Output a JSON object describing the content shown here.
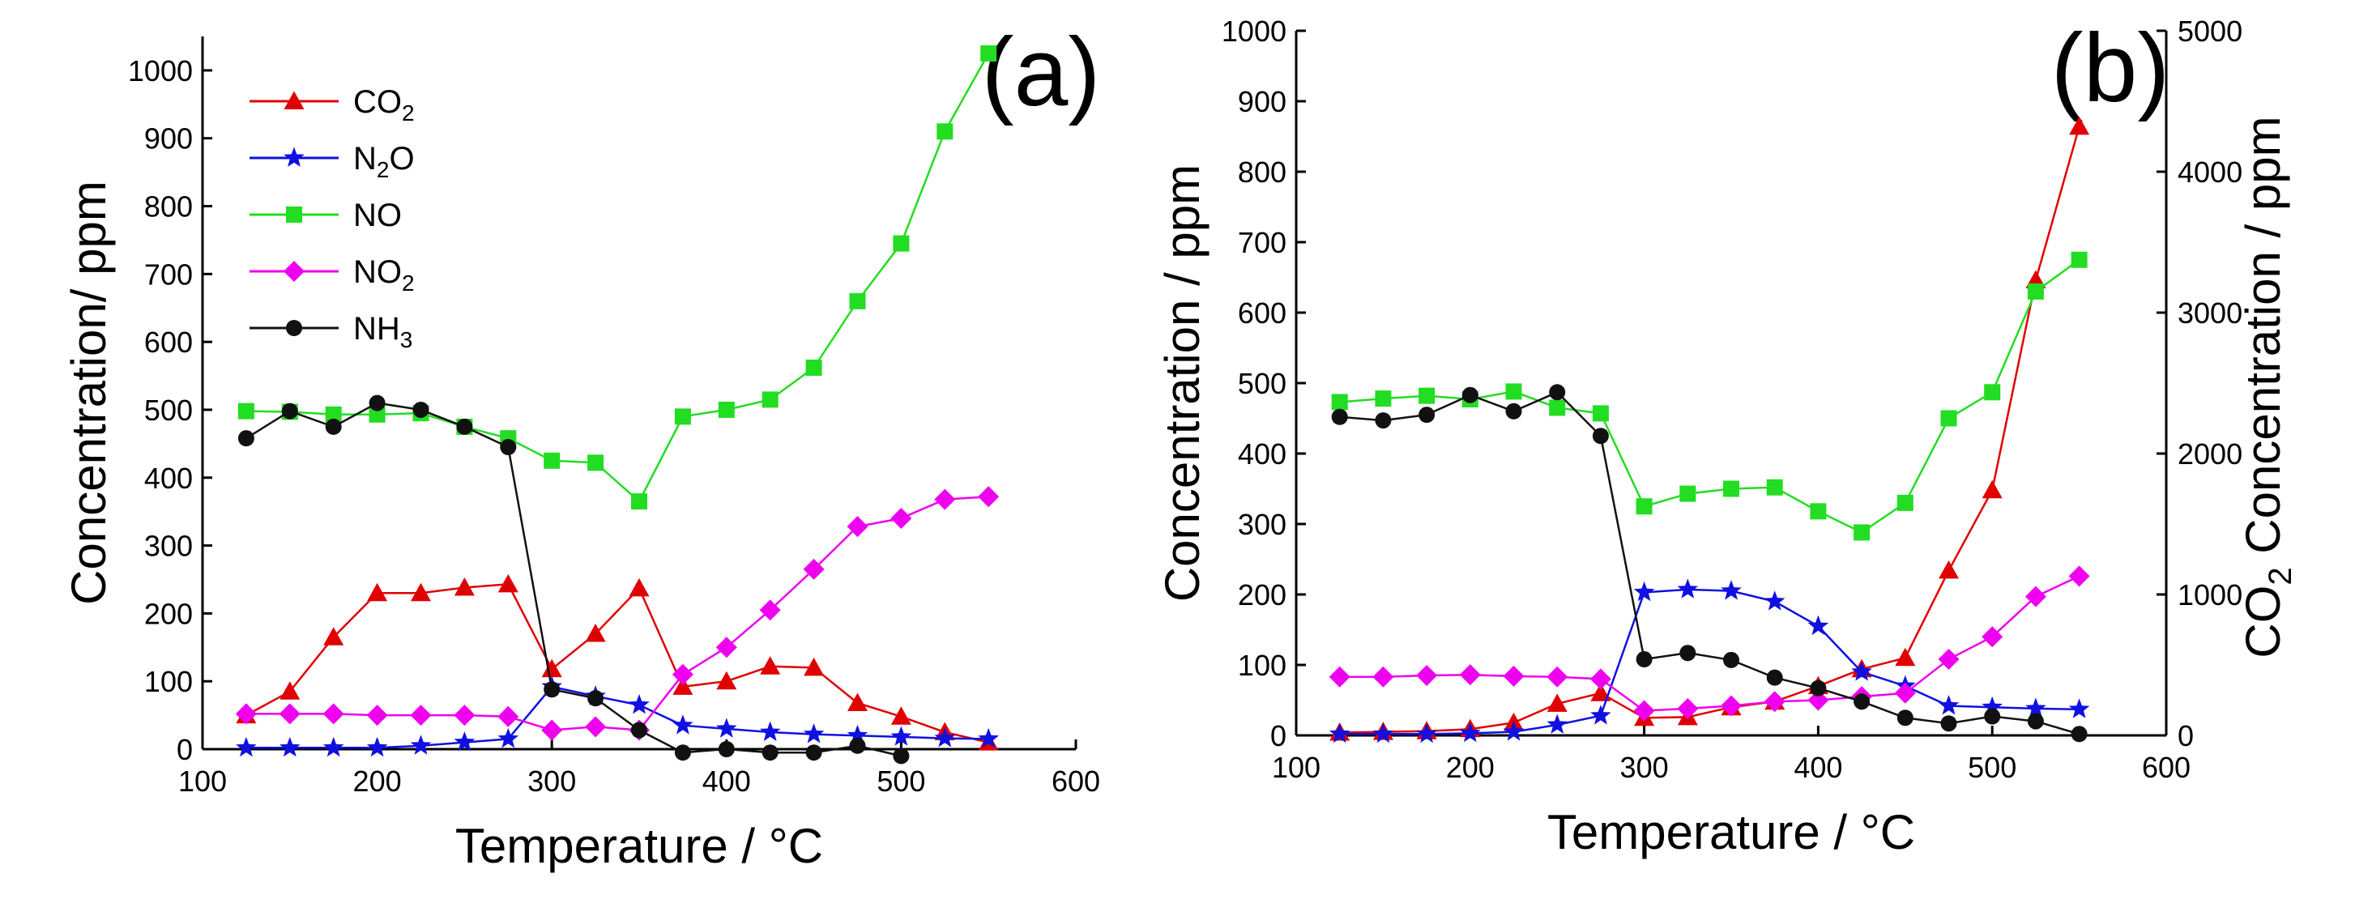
{
  "chart_data": [
    {
      "id": "a",
      "type": "line",
      "panel_label": "(a)",
      "xlabel": "Temperature / °C",
      "ylabel": "Concentration/ ppm",
      "xlim": [
        100,
        600
      ],
      "ylim": [
        0,
        1050
      ],
      "xticks": [
        100,
        200,
        300,
        400,
        500,
        600
      ],
      "yticks": [
        0,
        100,
        200,
        300,
        400,
        500,
        600,
        700,
        800,
        900,
        1000
      ],
      "legend_position": "top-left",
      "series": [
        {
          "name": "CO2",
          "label_main": "CO",
          "label_sub": "2",
          "color": "#e00000",
          "marker": "triangle",
          "x": [
            125,
            150,
            175,
            200,
            225,
            250,
            275,
            300,
            325,
            350,
            375,
            400,
            425,
            450,
            475,
            500,
            525,
            550
          ],
          "values": [
            50,
            85,
            165,
            230,
            230,
            238,
            243,
            118,
            170,
            237,
            92,
            100,
            122,
            120,
            68,
            48,
            25,
            10
          ]
        },
        {
          "name": "N2O",
          "label_main": "N",
          "label_sub": "2",
          "label_tail": "O",
          "color": "#1010e0",
          "marker": "star",
          "x": [
            125,
            150,
            175,
            200,
            225,
            250,
            275,
            300,
            325,
            350,
            375,
            400,
            425,
            450,
            475,
            500,
            525,
            550
          ],
          "values": [
            2,
            2,
            2,
            2,
            5,
            10,
            15,
            92,
            78,
            65,
            35,
            30,
            25,
            22,
            20,
            18,
            16,
            15
          ]
        },
        {
          "name": "NO",
          "label_main": "NO",
          "color": "#22dd22",
          "marker": "square",
          "x": [
            125,
            150,
            175,
            200,
            225,
            250,
            275,
            300,
            325,
            350,
            375,
            400,
            425,
            450,
            475,
            500,
            525,
            550
          ],
          "values": [
            498,
            497,
            493,
            493,
            495,
            475,
            458,
            425,
            422,
            365,
            490,
            500,
            515,
            562,
            660,
            745,
            910,
            1025
          ]
        },
        {
          "name": "NO2",
          "label_main": "NO",
          "label_sub": "2",
          "color": "#ee00ee",
          "marker": "diamond",
          "x": [
            125,
            150,
            175,
            200,
            225,
            250,
            275,
            300,
            325,
            350,
            375,
            400,
            425,
            450,
            475,
            500,
            525,
            550
          ],
          "values": [
            52,
            52,
            52,
            50,
            50,
            50,
            48,
            28,
            33,
            28,
            110,
            150,
            205,
            265,
            328,
            340,
            368,
            372
          ]
        },
        {
          "name": "NH3",
          "label_main": "NH",
          "label_sub": "3",
          "color": "#111111",
          "marker": "circle",
          "x": [
            125,
            150,
            175,
            200,
            225,
            250,
            275,
            300,
            325,
            350,
            375,
            400,
            425,
            450,
            475,
            500
          ],
          "values": [
            458,
            498,
            475,
            510,
            500,
            475,
            445,
            88,
            75,
            28,
            -5,
            0,
            -5,
            -5,
            5,
            -10
          ]
        }
      ]
    },
    {
      "id": "b",
      "type": "line",
      "panel_label": "(b)",
      "xlabel": "Temperature / °C",
      "ylabel": "Concentration / ppm",
      "y2label_pre": "CO",
      "y2label_sub": "2",
      "y2label_post": " Concentration / ppm",
      "xlim": [
        100,
        600
      ],
      "ylim": [
        0,
        1000
      ],
      "y2lim": [
        0,
        5000
      ],
      "xticks": [
        100,
        200,
        300,
        400,
        500,
        600
      ],
      "yticks": [
        0,
        100,
        200,
        300,
        400,
        500,
        600,
        700,
        800,
        900,
        1000
      ],
      "y2ticks": [
        0,
        1000,
        2000,
        3000,
        4000,
        5000
      ],
      "series": [
        {
          "name": "CO2",
          "color": "#e00000",
          "marker": "triangle",
          "axis": "right",
          "x": [
            125,
            150,
            175,
            200,
            225,
            250,
            275,
            300,
            325,
            350,
            375,
            400,
            425,
            450,
            475,
            500,
            525,
            550
          ],
          "values": [
            20,
            25,
            30,
            45,
            90,
            225,
            300,
            125,
            130,
            200,
            240,
            350,
            470,
            550,
            1170,
            1740,
            3230,
            4320
          ]
        },
        {
          "name": "N2O",
          "color": "#1010e0",
          "marker": "star",
          "axis": "left",
          "x": [
            125,
            150,
            175,
            200,
            225,
            250,
            275,
            300,
            325,
            350,
            375,
            400,
            425,
            450,
            475,
            500,
            525,
            550
          ],
          "values": [
            2,
            2,
            2,
            3,
            5,
            15,
            28,
            203,
            207,
            205,
            190,
            155,
            90,
            70,
            42,
            40,
            38,
            37
          ]
        },
        {
          "name": "NO",
          "color": "#22dd22",
          "marker": "square",
          "axis": "left",
          "x": [
            125,
            150,
            175,
            200,
            225,
            250,
            275,
            300,
            325,
            350,
            375,
            400,
            425,
            450,
            475,
            500,
            525,
            550
          ],
          "values": [
            473,
            478,
            482,
            477,
            488,
            465,
            457,
            325,
            343,
            350,
            352,
            318,
            288,
            330,
            450,
            487,
            630,
            675
          ]
        },
        {
          "name": "NO2",
          "color": "#ee00ee",
          "marker": "diamond",
          "axis": "left",
          "x": [
            125,
            150,
            175,
            200,
            225,
            250,
            275,
            300,
            325,
            350,
            375,
            400,
            425,
            450,
            475,
            500,
            525,
            550
          ],
          "values": [
            83,
            83,
            85,
            86,
            84,
            83,
            80,
            35,
            38,
            42,
            48,
            50,
            55,
            60,
            108,
            140,
            197,
            226
          ]
        },
        {
          "name": "NH3",
          "color": "#111111",
          "marker": "circle",
          "axis": "left",
          "x": [
            125,
            150,
            175,
            200,
            225,
            250,
            275,
            300,
            325,
            350,
            375,
            400,
            425,
            450,
            475,
            500,
            525,
            550
          ],
          "values": [
            452,
            447,
            455,
            483,
            460,
            487,
            425,
            108,
            117,
            107,
            82,
            67,
            48,
            25,
            17,
            27,
            20,
            2
          ]
        }
      ]
    }
  ]
}
